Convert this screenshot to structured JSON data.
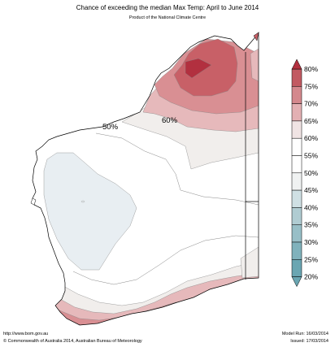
{
  "header": {
    "title": "Chance of exceeding the median Max Temp: April to June 2014",
    "subtitle": "Product of the National Climate Centre"
  },
  "map": {
    "contour_labels": [
      "50%",
      "60%"
    ],
    "colors": {
      "c80": "#b2303f",
      "c75": "#c86067",
      "c70": "#d98f93",
      "c65": "#e6b9bb",
      "c60": "#f1eeec",
      "c40": "#e8eef2",
      "c35": "#b9d2d8",
      "c30": "#9bc0c8",
      "c20": "#6aa8b4"
    }
  },
  "legend": {
    "items": [
      {
        "label": "80%",
        "color": "#b2303f"
      },
      {
        "label": "75%",
        "color": "#c25a62"
      },
      {
        "label": "70%",
        "color": "#d4888d"
      },
      {
        "label": "65%",
        "color": "#e3b0b3"
      },
      {
        "label": "60%",
        "color": "#f0e4e4"
      },
      {
        "label": "55%",
        "color": "#ffffff"
      },
      {
        "label": "50%",
        "color": "#ffffff"
      },
      {
        "label": "45%",
        "color": "#f0f2f2"
      },
      {
        "label": "40%",
        "color": "#cfe0e4"
      },
      {
        "label": "35%",
        "color": "#b0ccd2"
      },
      {
        "label": "30%",
        "color": "#98bfc7"
      },
      {
        "label": "25%",
        "color": "#80b2bc"
      },
      {
        "label": "20%",
        "color": "#6aa6b2"
      }
    ]
  },
  "footer": {
    "url": "http://www.bom.gov.au",
    "copyright": "©  Commonwealth of Australia 2014, Australian Bureau of Meteorology",
    "model_run": "Model Run: 16/03/2014",
    "issued": "Issued: 17/03/2014"
  }
}
